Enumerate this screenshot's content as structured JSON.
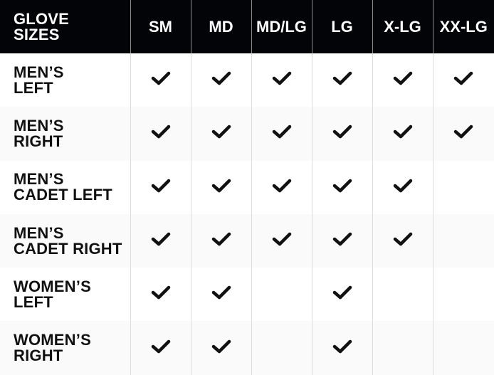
{
  "table": {
    "corner_label": "GLOVE\nSIZES",
    "columns": [
      "SM",
      "MD",
      "MD/LG",
      "LG",
      "X-LG",
      "XX-LG"
    ],
    "rows": [
      {
        "label": "MEN’S\nLEFT",
        "available": [
          true,
          true,
          true,
          true,
          true,
          true
        ]
      },
      {
        "label": "MEN’S\nRIGHT",
        "available": [
          true,
          true,
          true,
          true,
          true,
          true
        ]
      },
      {
        "label": "MEN’S\nCADET LEFT",
        "available": [
          true,
          true,
          true,
          true,
          true,
          false
        ]
      },
      {
        "label": "MEN’S\nCADET RIGHT",
        "available": [
          true,
          true,
          true,
          true,
          true,
          false
        ]
      },
      {
        "label": "WOMEN’S\nLEFT",
        "available": [
          true,
          true,
          false,
          true,
          false,
          false
        ]
      },
      {
        "label": "WOMEN’S\nRIGHT",
        "available": [
          true,
          true,
          false,
          true,
          false,
          false
        ]
      }
    ],
    "check_icon": "checkmark-icon",
    "colors": {
      "header_bg": "#030407",
      "header_text": "#ffffff",
      "alt_row": "#fafafa",
      "check": "#111111"
    }
  }
}
